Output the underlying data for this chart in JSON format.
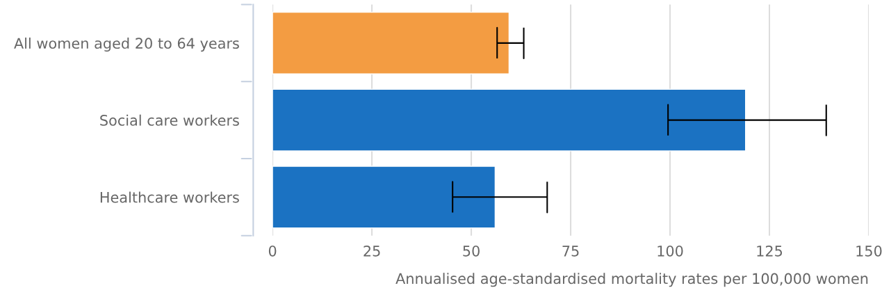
{
  "chart_data": {
    "type": "bar",
    "orientation": "horizontal",
    "categories": [
      "All women aged 20 to 64 years",
      "Social care workers",
      "Healthcare workers"
    ],
    "values": [
      59.5,
      119,
      56
    ],
    "colors": [
      "#f39c42",
      "#1b72c2",
      "#1b72c2"
    ],
    "errors": [
      [
        56.5,
        63.2
      ],
      [
        99.5,
        139.3
      ],
      [
        45.3,
        69.1
      ]
    ],
    "xlabel": "Annualised age-standardised mortality rates per 100,000 women",
    "xlim": [
      0,
      150
    ],
    "xticks": [
      0,
      25,
      50,
      75,
      100,
      125,
      150
    ],
    "grid": "x"
  }
}
